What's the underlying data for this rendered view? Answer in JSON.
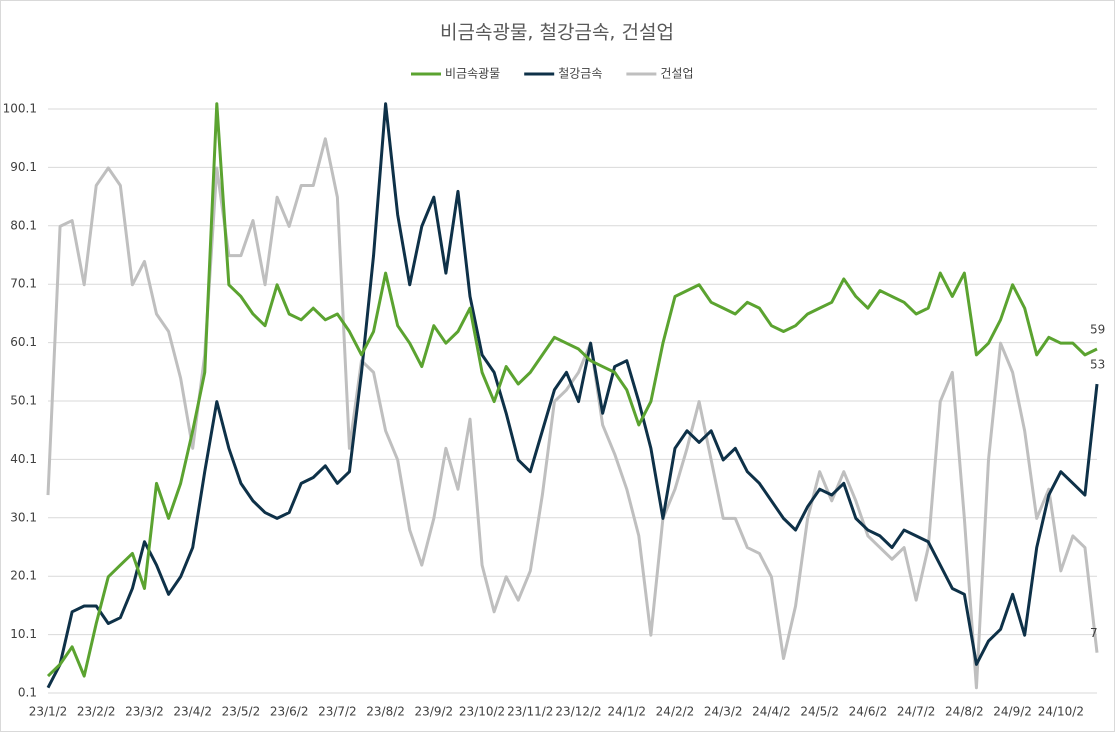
{
  "chart_data": {
    "type": "line",
    "title": "비금속광물, 철강금속, 건설업",
    "categories": [
      "23/1/2",
      null,
      null,
      null,
      "23/2/2",
      null,
      null,
      null,
      "23/3/2",
      null,
      null,
      null,
      "23/4/2",
      null,
      null,
      null,
      "23/5/2",
      null,
      null,
      null,
      "23/6/2",
      null,
      null,
      null,
      "23/7/2",
      null,
      null,
      null,
      "23/8/2",
      null,
      null,
      null,
      "23/9/2",
      null,
      null,
      null,
      "23/10/2",
      null,
      null,
      null,
      "23/11/2",
      null,
      null,
      null,
      "23/12/2",
      null,
      null,
      null,
      "24/1/2",
      null,
      null,
      null,
      "24/2/2",
      null,
      null,
      null,
      "24/3/2",
      null,
      null,
      null,
      "24/4/2",
      null,
      null,
      null,
      "24/5/2",
      null,
      null,
      null,
      "24/6/2",
      null,
      null,
      null,
      "24/7/2",
      null,
      null,
      null,
      "24/8/2",
      null,
      null,
      null,
      "24/9/2",
      null,
      null,
      null,
      "24/10/2",
      null,
      null,
      null
    ],
    "series": [
      {
        "name": "비금속광물",
        "color": "#5ba330",
        "values": [
          3,
          5,
          8,
          3,
          12,
          20,
          22,
          24,
          18,
          36,
          30,
          36,
          45,
          55,
          101,
          70,
          68,
          65,
          63,
          70,
          65,
          64,
          66,
          64,
          65,
          62,
          58,
          62,
          72,
          63,
          60,
          56,
          63,
          60,
          62,
          66,
          55,
          50,
          56,
          53,
          55,
          58,
          61,
          60,
          59,
          57,
          56,
          55,
          52,
          46,
          50,
          60,
          68,
          69,
          70,
          67,
          66,
          65,
          67,
          66,
          63,
          62,
          63,
          65,
          66,
          67,
          71,
          68,
          66,
          69,
          68,
          67,
          65,
          66,
          72,
          68,
          72,
          58,
          60,
          64,
          70,
          66,
          58,
          61,
          60,
          60,
          58,
          59
        ]
      },
      {
        "name": "철강금속",
        "color": "#0e3148",
        "values": [
          1,
          5,
          14,
          15,
          15,
          12,
          13,
          18,
          26,
          22,
          17,
          20,
          25,
          38,
          50,
          42,
          36,
          33,
          31,
          30,
          31,
          36,
          37,
          39,
          36,
          38,
          55,
          75,
          101,
          82,
          70,
          80,
          85,
          72,
          86,
          68,
          58,
          55,
          48,
          40,
          38,
          45,
          52,
          55,
          50,
          60,
          48,
          56,
          57,
          50,
          42,
          30,
          42,
          45,
          43,
          45,
          40,
          42,
          38,
          36,
          33,
          30,
          28,
          32,
          35,
          34,
          36,
          30,
          28,
          27,
          25,
          28,
          27,
          26,
          22,
          18,
          17,
          5,
          9,
          11,
          17,
          10,
          25,
          34,
          38,
          36,
          34,
          53
        ]
      },
      {
        "name": "건설업",
        "color": "#bfbfbf",
        "values": [
          34,
          80,
          81,
          70,
          87,
          90,
          87,
          70,
          74,
          65,
          62,
          54,
          42,
          58,
          90,
          75,
          75,
          81,
          70,
          85,
          80,
          87,
          87,
          95,
          85,
          42,
          57,
          55,
          45,
          40,
          28,
          22,
          30,
          42,
          35,
          47,
          22,
          14,
          20,
          16,
          21,
          34,
          50,
          52,
          55,
          60,
          46,
          41,
          35,
          27,
          10,
          30,
          35,
          42,
          50,
          40,
          30,
          30,
          25,
          24,
          20,
          6,
          15,
          30,
          38,
          33,
          38,
          33,
          27,
          25,
          23,
          25,
          16,
          25,
          50,
          55,
          30,
          1,
          40,
          60,
          55,
          45,
          30,
          35,
          21,
          27,
          25,
          7
        ]
      }
    ],
    "ylim": [
      0.1,
      101.1
    ],
    "yticks": [
      0.1,
      10.1,
      20.1,
      30.1,
      40.1,
      50.1,
      60.1,
      70.1,
      80.1,
      90.1,
      100.1
    ],
    "grid": true
  }
}
